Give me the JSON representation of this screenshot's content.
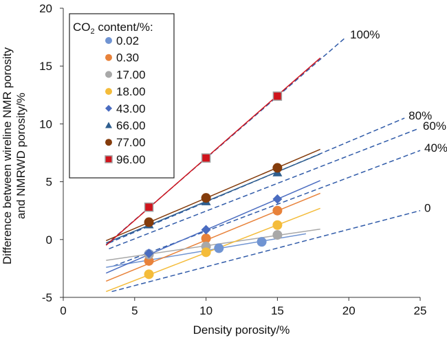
{
  "chart_data": {
    "type": "scatter",
    "xlabel": "Density porosity/%",
    "ylabel_lines": [
      "Difference between wireline NMR porosity",
      "and NMRWD porosity/%"
    ],
    "xlim": [
      0,
      25
    ],
    "ylim": [
      -5,
      20
    ],
    "xticks": [
      0,
      5,
      10,
      15,
      20,
      25
    ],
    "yticks": [
      -5,
      0,
      5,
      10,
      15,
      20
    ],
    "grid": false,
    "legend": {
      "title": "CO",
      "title_sub": "2",
      "title_rest": " content/%:",
      "placement": "top-left"
    },
    "series": [
      {
        "name": "0.02",
        "color": "#7094d2",
        "marker": "circle",
        "points": [
          [
            6,
            -1.25
          ],
          [
            10.9,
            -0.75
          ],
          [
            13.9,
            -0.2
          ]
        ],
        "fit": [
          [
            3,
            -2.4
          ],
          [
            17,
            0.5
          ]
        ]
      },
      {
        "name": "0.30",
        "color": "#e8823a",
        "marker": "circle",
        "points": [
          [
            6,
            -1.85
          ],
          [
            10,
            0.1
          ],
          [
            15,
            2.5
          ]
        ],
        "fit": [
          [
            3,
            -3.6
          ],
          [
            18,
            4.0
          ]
        ]
      },
      {
        "name": "17.00",
        "color": "#a8a8a8",
        "marker": "circle",
        "points": [
          [
            6,
            -1.3
          ],
          [
            10,
            -0.6
          ],
          [
            15,
            0.4
          ]
        ],
        "fit": [
          [
            3,
            -1.8
          ],
          [
            18,
            0.9
          ]
        ]
      },
      {
        "name": "18.00",
        "color": "#f4bc3a",
        "marker": "circle",
        "points": [
          [
            6,
            -3.0
          ],
          [
            10,
            -1.1
          ],
          [
            15,
            1.25
          ]
        ],
        "fit": [
          [
            3,
            -4.5
          ],
          [
            18,
            2.7
          ]
        ]
      },
      {
        "name": "43.00",
        "color": "#4a6cc0",
        "marker": "diamond",
        "points": [
          [
            6,
            -1.2
          ],
          [
            10,
            0.85
          ],
          [
            15,
            3.5
          ]
        ],
        "fit": [
          [
            3,
            -2.9
          ],
          [
            18,
            5.1
          ]
        ]
      },
      {
        "name": "66.00",
        "color": "#2e5e8e",
        "marker": "triangle",
        "points": [
          [
            6,
            1.3
          ],
          [
            10,
            3.3
          ],
          [
            15,
            5.8
          ]
        ],
        "fit": [
          [
            3,
            -0.3
          ],
          [
            18,
            7.4
          ]
        ]
      },
      {
        "name": "77.00",
        "color": "#843c0c",
        "marker": "circle",
        "points": [
          [
            6,
            1.5
          ],
          [
            10,
            3.6
          ],
          [
            15,
            6.2
          ]
        ],
        "fit": [
          [
            3,
            -0.1
          ],
          [
            18,
            7.8
          ]
        ]
      },
      {
        "name": "96.00",
        "color": "#d0141c",
        "marker": "square",
        "points": [
          [
            6,
            2.8
          ],
          [
            10,
            7.05
          ],
          [
            15,
            12.4
          ]
        ],
        "fit": [
          [
            3,
            -0.5
          ],
          [
            18,
            15.7
          ]
        ]
      }
    ],
    "reference_lines": [
      {
        "label": "100%",
        "color": "#2f5aa8",
        "from": [
          3,
          -0.45
        ],
        "to": [
          19.8,
          17.5
        ]
      },
      {
        "label": "80%",
        "color": "#2f5aa8",
        "from": [
          3.2,
          -0.3
        ],
        "to": [
          23.9,
          10.5
        ]
      },
      {
        "label": "60%",
        "color": "#2f5aa8",
        "from": [
          3.2,
          -0.8
        ],
        "to": [
          24.9,
          9.6
        ]
      },
      {
        "label": "40%",
        "color": "#2f5aa8",
        "from": [
          3.5,
          -2.3
        ],
        "to": [
          25,
          7.7
        ]
      },
      {
        "label": "0",
        "color": "#2f5aa8",
        "from": [
          3.4,
          -4.5
        ],
        "to": [
          25,
          2.5
        ]
      }
    ]
  }
}
